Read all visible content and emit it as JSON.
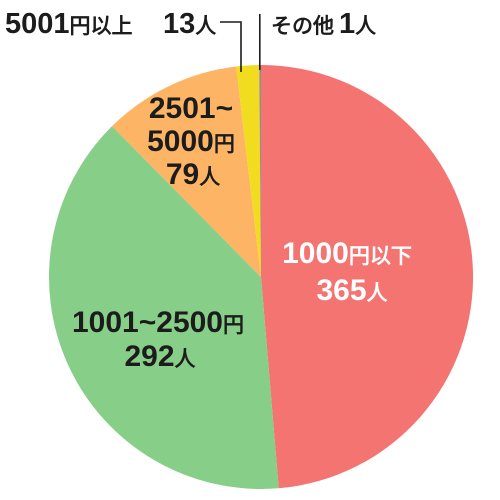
{
  "chart_data": {
    "type": "pie",
    "start": "top",
    "direction": "clockwise",
    "categories": [
      "1000円以下",
      "1001~2500円",
      "2501~5000円",
      "5001円以上",
      "その他"
    ],
    "values": [
      365,
      292,
      79,
      13,
      1
    ],
    "value_labels": [
      "365人",
      "292人",
      "79人",
      "13人",
      "1人"
    ],
    "colors": [
      "#f47472",
      "#87cf88",
      "#fdb465",
      "#f1dc1f",
      "#8f8f8f"
    ]
  }
}
